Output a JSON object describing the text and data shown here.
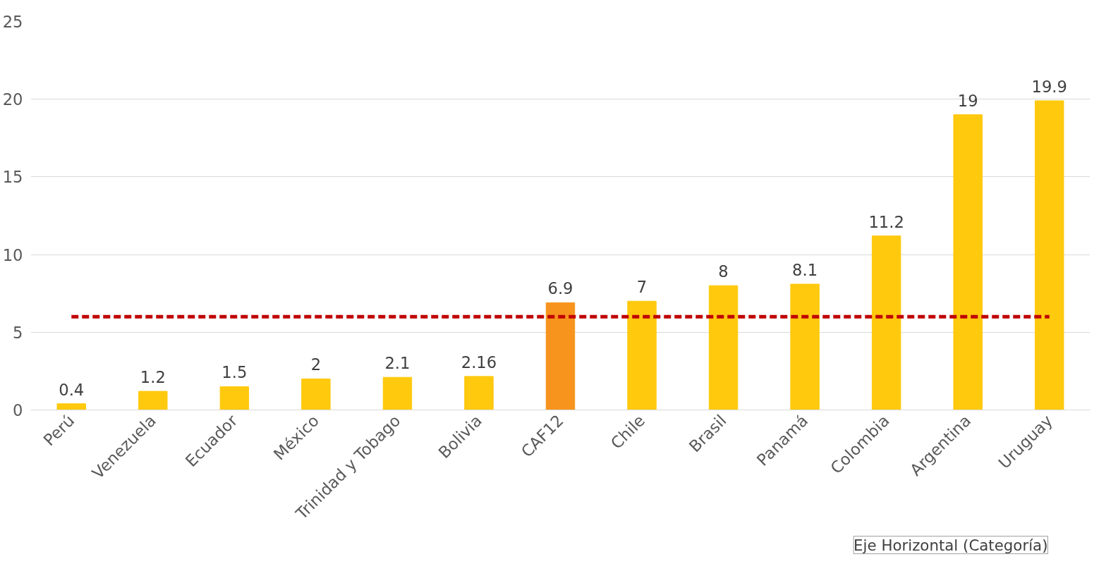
{
  "chart_data": {
    "type": "bar",
    "categories": [
      "Perú",
      "Venezuela",
      "Ecuador",
      "México",
      "Trinidad y Tobago",
      "Bolivia",
      "CAF12",
      "Chile",
      "Brasil",
      "Panamá",
      "Colombia",
      "Argentina",
      "Uruguay"
    ],
    "values": [
      0.4,
      1.2,
      1.5,
      2,
      2.1,
      2.16,
      6.9,
      7,
      8,
      8.1,
      11.2,
      19,
      19.9
    ],
    "colors": [
      "#ffc90e",
      "#ffc90e",
      "#ffc90e",
      "#ffc90e",
      "#ffc90e",
      "#ffc90e",
      "#f7941d",
      "#ffc90e",
      "#ffc90e",
      "#ffc90e",
      "#ffc90e",
      "#ffc90e",
      "#ffc90e"
    ],
    "ylim": [
      0,
      25
    ],
    "yticks": [
      0,
      5,
      10,
      15,
      20,
      25
    ],
    "grid": "y",
    "data_labels": true,
    "ref_lines": [
      {
        "axis": "y",
        "value": 6,
        "label": null,
        "color": "#c00000",
        "line_style": "dashed"
      }
    ],
    "annotations": [
      "Eje Horizontal (Categoría)"
    ]
  }
}
